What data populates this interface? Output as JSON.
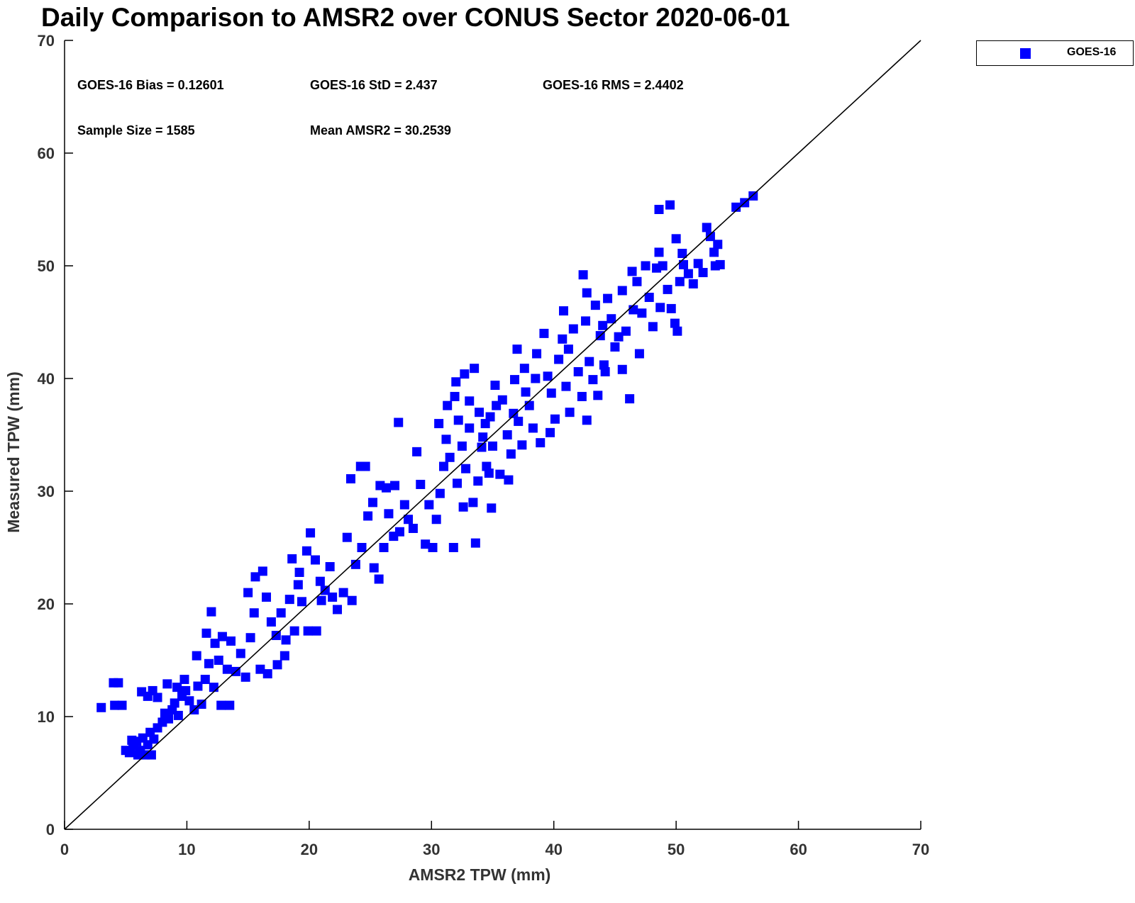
{
  "chart_data": {
    "type": "scatter",
    "title": "Daily Comparison to AMSR2 over CONUS Sector 2020-06-01",
    "xlabel": "AMSR2 TPW (mm)",
    "ylabel": "Measured TPW (mm)",
    "xlim": [
      0,
      70
    ],
    "ylim": [
      0,
      70
    ],
    "xticks": [
      "0",
      "10",
      "20",
      "30",
      "40",
      "50",
      "60",
      "70"
    ],
    "yticks": [
      "0",
      "10",
      "20",
      "30",
      "40",
      "50",
      "60",
      "70"
    ],
    "grid": false,
    "legend": {
      "placement": "outside-top-right",
      "entries": [
        "GOES-16"
      ]
    },
    "colors": {
      "series": "#0000ff",
      "reference_line": "#000000"
    },
    "reference_line": {
      "from": [
        0,
        0
      ],
      "to": [
        70,
        70
      ]
    },
    "annotations": [
      "GOES-16 Bias = 0.12601",
      "GOES-16 StD = 2.437",
      "GOES-16 RMS = 2.4402",
      "Sample Size = 1585",
      "Mean AMSR2 = 30.2539"
    ],
    "series": [
      {
        "name": "GOES-16",
        "marker": "square",
        "points": [
          [
            3.0,
            10.8
          ],
          [
            4.0,
            13.0
          ],
          [
            4.4,
            13.0
          ],
          [
            4.1,
            11.0
          ],
          [
            4.7,
            11.0
          ],
          [
            5.0,
            7.0
          ],
          [
            5.3,
            6.8
          ],
          [
            5.6,
            7.4
          ],
          [
            5.9,
            7.8
          ],
          [
            6.2,
            7.0
          ],
          [
            6.4,
            8.1
          ],
          [
            6.8,
            7.5
          ],
          [
            7.0,
            8.6
          ],
          [
            7.3,
            8.0
          ],
          [
            7.6,
            9.0
          ],
          [
            5.5,
            7.9
          ],
          [
            6.0,
            6.6
          ],
          [
            6.6,
            6.6
          ],
          [
            7.1,
            6.6
          ],
          [
            6.3,
            12.2
          ],
          [
            6.8,
            11.8
          ],
          [
            7.2,
            12.3
          ],
          [
            7.6,
            11.7
          ],
          [
            8.0,
            9.5
          ],
          [
            8.2,
            10.3
          ],
          [
            8.5,
            9.8
          ],
          [
            8.8,
            10.6
          ],
          [
            9.0,
            11.2
          ],
          [
            9.3,
            10.1
          ],
          [
            9.6,
            11.8
          ],
          [
            9.9,
            12.3
          ],
          [
            10.2,
            11.4
          ],
          [
            8.4,
            12.9
          ],
          [
            9.2,
            12.6
          ],
          [
            9.8,
            13.3
          ],
          [
            10.6,
            10.6
          ],
          [
            10.9,
            12.7
          ],
          [
            11.2,
            11.1
          ],
          [
            11.5,
            13.3
          ],
          [
            11.8,
            14.7
          ],
          [
            10.8,
            15.4
          ],
          [
            11.6,
            17.4
          ],
          [
            12.0,
            19.3
          ],
          [
            12.3,
            16.5
          ],
          [
            12.6,
            15.0
          ],
          [
            12.9,
            17.1
          ],
          [
            13.3,
            14.2
          ],
          [
            13.6,
            16.7
          ],
          [
            12.2,
            12.6
          ],
          [
            12.8,
            11.0
          ],
          [
            13.5,
            11.0
          ],
          [
            14.0,
            14.0
          ],
          [
            14.4,
            15.6
          ],
          [
            14.8,
            13.5
          ],
          [
            15.2,
            17.0
          ],
          [
            15.5,
            19.2
          ],
          [
            15.0,
            21.0
          ],
          [
            15.6,
            22.4
          ],
          [
            16.2,
            22.9
          ],
          [
            16.5,
            20.6
          ],
          [
            16.9,
            18.4
          ],
          [
            17.3,
            17.2
          ],
          [
            17.7,
            19.2
          ],
          [
            18.1,
            16.8
          ],
          [
            16.0,
            14.2
          ],
          [
            16.6,
            13.8
          ],
          [
            17.4,
            14.6
          ],
          [
            18.0,
            15.4
          ],
          [
            18.4,
            20.4
          ],
          [
            18.8,
            17.6
          ],
          [
            19.1,
            21.7
          ],
          [
            19.4,
            20.2
          ],
          [
            18.6,
            24.0
          ],
          [
            19.2,
            22.8
          ],
          [
            19.8,
            24.7
          ],
          [
            20.1,
            26.3
          ],
          [
            20.5,
            23.9
          ],
          [
            20.9,
            22.0
          ],
          [
            21.3,
            21.2
          ],
          [
            21.7,
            23.3
          ],
          [
            19.9,
            17.6
          ],
          [
            20.6,
            17.6
          ],
          [
            21.0,
            20.3
          ],
          [
            21.9,
            20.6
          ],
          [
            22.3,
            19.5
          ],
          [
            22.8,
            21.0
          ],
          [
            23.1,
            25.9
          ],
          [
            23.5,
            20.3
          ],
          [
            23.4,
            31.1
          ],
          [
            24.2,
            32.2
          ],
          [
            24.6,
            32.2
          ],
          [
            25.2,
            29.0
          ],
          [
            25.8,
            30.5
          ],
          [
            26.3,
            30.3
          ],
          [
            27.0,
            30.5
          ],
          [
            27.4,
            26.4
          ],
          [
            23.8,
            23.5
          ],
          [
            24.3,
            25.0
          ],
          [
            24.8,
            27.8
          ],
          [
            25.3,
            23.2
          ],
          [
            25.7,
            22.2
          ],
          [
            26.1,
            25.0
          ],
          [
            26.5,
            28.0
          ],
          [
            26.9,
            26.0
          ],
          [
            27.3,
            36.1
          ],
          [
            27.8,
            28.8
          ],
          [
            28.1,
            27.5
          ],
          [
            28.5,
            26.7
          ],
          [
            28.8,
            33.5
          ],
          [
            29.1,
            30.6
          ],
          [
            29.5,
            25.3
          ],
          [
            29.8,
            28.8
          ],
          [
            30.1,
            25.0
          ],
          [
            30.4,
            27.5
          ],
          [
            30.7,
            29.8
          ],
          [
            31.0,
            32.2
          ],
          [
            31.2,
            34.6
          ],
          [
            31.5,
            33.0
          ],
          [
            31.8,
            25.0
          ],
          [
            32.1,
            30.7
          ],
          [
            30.6,
            36.0
          ],
          [
            31.3,
            37.6
          ],
          [
            31.9,
            38.4
          ],
          [
            32.2,
            36.3
          ],
          [
            32.5,
            34.0
          ],
          [
            32.8,
            32.0
          ],
          [
            33.1,
            35.6
          ],
          [
            33.4,
            29.0
          ],
          [
            32.0,
            39.7
          ],
          [
            32.7,
            40.4
          ],
          [
            33.1,
            38.0
          ],
          [
            33.5,
            40.9
          ],
          [
            33.9,
            37.0
          ],
          [
            34.2,
            34.8
          ],
          [
            34.5,
            32.2
          ],
          [
            34.8,
            36.6
          ],
          [
            33.6,
            25.4
          ],
          [
            33.8,
            30.9
          ],
          [
            34.1,
            33.9
          ],
          [
            34.4,
            36.0
          ],
          [
            34.7,
            31.6
          ],
          [
            35.0,
            34.0
          ],
          [
            35.3,
            37.6
          ],
          [
            35.6,
            31.5
          ],
          [
            35.2,
            39.4
          ],
          [
            35.8,
            38.1
          ],
          [
            36.2,
            35.0
          ],
          [
            36.5,
            33.3
          ],
          [
            36.8,
            39.9
          ],
          [
            37.1,
            36.2
          ],
          [
            37.4,
            34.1
          ],
          [
            37.7,
            38.8
          ],
          [
            36.3,
            31.0
          ],
          [
            36.7,
            36.9
          ],
          [
            37.0,
            42.6
          ],
          [
            37.6,
            40.9
          ],
          [
            38.0,
            37.6
          ],
          [
            38.3,
            35.6
          ],
          [
            38.6,
            42.2
          ],
          [
            38.9,
            34.3
          ],
          [
            39.2,
            44.0
          ],
          [
            39.5,
            40.2
          ],
          [
            39.8,
            38.7
          ],
          [
            40.1,
            36.4
          ],
          [
            40.4,
            41.7
          ],
          [
            40.7,
            43.5
          ],
          [
            41.0,
            39.3
          ],
          [
            41.3,
            37.0
          ],
          [
            40.8,
            46.0
          ],
          [
            41.2,
            42.6
          ],
          [
            41.6,
            44.4
          ],
          [
            42.0,
            40.6
          ],
          [
            42.3,
            38.4
          ],
          [
            42.6,
            45.1
          ],
          [
            42.9,
            41.5
          ],
          [
            43.2,
            39.9
          ],
          [
            42.4,
            49.2
          ],
          [
            42.7,
            47.6
          ],
          [
            43.4,
            46.5
          ],
          [
            43.8,
            43.8
          ],
          [
            44.1,
            41.2
          ],
          [
            44.4,
            47.1
          ],
          [
            44.7,
            45.3
          ],
          [
            45.0,
            42.8
          ],
          [
            42.7,
            36.3
          ],
          [
            43.6,
            38.5
          ],
          [
            44.2,
            40.6
          ],
          [
            45.3,
            43.7
          ],
          [
            45.6,
            47.8
          ],
          [
            45.9,
            44.2
          ],
          [
            46.2,
            38.2
          ],
          [
            46.5,
            46.1
          ],
          [
            46.4,
            49.5
          ],
          [
            46.8,
            48.6
          ],
          [
            47.2,
            45.8
          ],
          [
            47.5,
            50.0
          ],
          [
            47.8,
            47.2
          ],
          [
            48.1,
            44.6
          ],
          [
            48.4,
            49.8
          ],
          [
            48.7,
            46.3
          ],
          [
            48.6,
            51.2
          ],
          [
            48.9,
            50.0
          ],
          [
            49.3,
            47.9
          ],
          [
            49.6,
            46.2
          ],
          [
            49.9,
            44.9
          ],
          [
            50.1,
            44.2
          ],
          [
            50.3,
            48.6
          ],
          [
            50.6,
            50.1
          ],
          [
            48.6,
            55.0
          ],
          [
            49.5,
            55.4
          ],
          [
            50.0,
            52.4
          ],
          [
            50.5,
            51.1
          ],
          [
            51.0,
            49.3
          ],
          [
            51.4,
            48.4
          ],
          [
            51.8,
            50.2
          ],
          [
            52.2,
            49.4
          ],
          [
            52.5,
            53.4
          ],
          [
            52.8,
            52.6
          ],
          [
            53.1,
            51.2
          ],
          [
            53.4,
            51.9
          ],
          [
            53.6,
            50.1
          ],
          [
            53.2,
            50.0
          ],
          [
            54.9,
            55.2
          ],
          [
            55.6,
            55.6
          ],
          [
            56.3,
            56.2
          ],
          [
            47.0,
            42.2
          ],
          [
            45.6,
            40.8
          ],
          [
            44.0,
            44.7
          ],
          [
            39.7,
            35.2
          ],
          [
            38.5,
            40.0
          ],
          [
            34.9,
            28.5
          ],
          [
            32.6,
            28.6
          ]
        ]
      }
    ]
  }
}
